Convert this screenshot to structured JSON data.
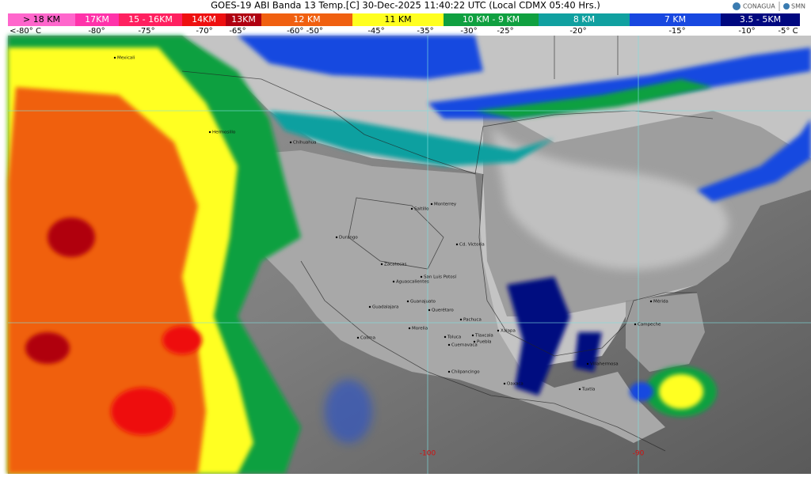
{
  "header": {
    "title": "GOES-19 ABI Banda 13 Temp.[C] 30-Dec-2025 11:40:22 UTC (Local CDMX  05:40 Hrs.)",
    "logos": [
      "CONAGUA",
      "SMN"
    ]
  },
  "legend": {
    "heights": [
      {
        "label": "> 18 KM",
        "color": "#ff66cc"
      },
      {
        "label": "17KM",
        "color": "#ff33aa"
      },
      {
        "label": "15 - 16KM",
        "color": "#ff2060"
      },
      {
        "label": "14KM",
        "color": "#ee1010"
      },
      {
        "label": "13KM",
        "color": "#b00010"
      },
      {
        "label": "12 KM",
        "color": "#f06010"
      },
      {
        "label": "11 KM",
        "color": "#ffff20"
      },
      {
        "label": "10 KM - 9 KM",
        "color": "#10a040"
      },
      {
        "label": "8 KM",
        "color": "#10a0a0"
      },
      {
        "label": "7 KM",
        "color": "#1848e0"
      },
      {
        "label": "3.5 - 5KM",
        "color": "#000880"
      }
    ],
    "temperatures": [
      "<-80° C",
      "-80°",
      "-75°",
      "-70°",
      "-65°",
      "-60° -50°",
      "-45°",
      "-35°",
      "-30°",
      "-25°",
      "-20°",
      "-15°",
      "-10°",
      "-5° C"
    ]
  },
  "map": {
    "cities": [
      "Mexicali",
      "Hermosillo",
      "Chihuahua",
      "Saltillo",
      "Monterrey",
      "Durango",
      "Cd. Victoria",
      "Zacatecas",
      "San Luis Potosí",
      "Aguascalientes",
      "Guadalajara",
      "Guanajuato",
      "Querétaro",
      "Pachuca",
      "Morelia",
      "Colima",
      "Toluca",
      "Tlaxcala",
      "Cuernavaca",
      "Puebla",
      "Xalapa",
      "Chilpancingo",
      "Oaxaca",
      "Villahermosa",
      "Tuxtla",
      "Campeche",
      "Mérida"
    ],
    "grid_labels": [
      "-100",
      "-90"
    ]
  }
}
